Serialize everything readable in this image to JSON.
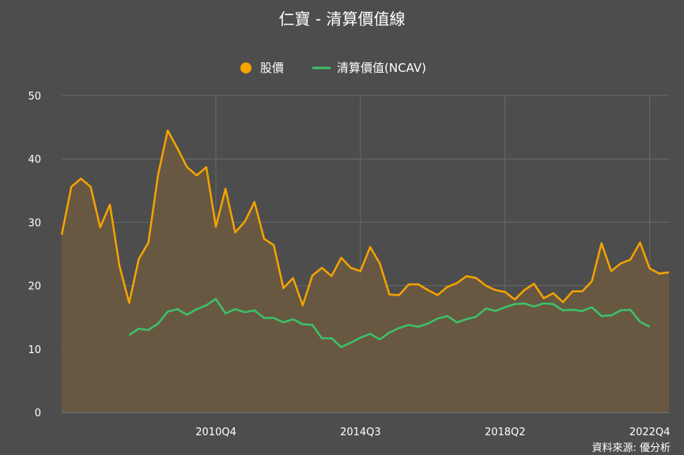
{
  "chart_data": {
    "type": "line",
    "title": "仁寶 - 清算價值線",
    "source": "資料來源: 優分析",
    "xlabel": "",
    "ylabel": "",
    "ylim": [
      0,
      50
    ],
    "yticks": [
      0,
      10,
      20,
      30,
      40,
      50
    ],
    "x_tick_labels": [
      "2010Q4",
      "2014Q3",
      "2018Q2",
      "2022Q4"
    ],
    "grid": true,
    "legend_position": "top-center",
    "colors": {
      "background": "#4d4d4d",
      "price": "#f5a300",
      "ncav": "#3cc26a",
      "price_fill": "#6b5a40"
    },
    "series": [
      {
        "name": "股價",
        "values": [
          28,
          35.6,
          36.9,
          35.6,
          29.2,
          32.8,
          23.1,
          17.3,
          24.2,
          26.8,
          37.5,
          44.5,
          41.7,
          38.7,
          37.4,
          38.7,
          29.3,
          35.3,
          28.4,
          30.1,
          33.2,
          27.4,
          26.4,
          19.6,
          21.2,
          16.9,
          21.6,
          22.8,
          21.5,
          24.4,
          22.8,
          22.3,
          26.1,
          23.5,
          18.6,
          18.5,
          20.2,
          20.2,
          19.3,
          18.5,
          19.8,
          20.4,
          21.5,
          21.2,
          20,
          19.3,
          19,
          17.8,
          19.3,
          20.3,
          18,
          18.8,
          17.4,
          19.1,
          19.1,
          20.7,
          26.7,
          22.3,
          23.5,
          24.1,
          26.8,
          22.7,
          21.9,
          22.1
        ]
      },
      {
        "name": "清算價值(NCAV)",
        "values": [
          null,
          null,
          null,
          null,
          null,
          null,
          null,
          12.2,
          13.2,
          13,
          14,
          15.9,
          16.3,
          15.4,
          16.3,
          16.9,
          17.9,
          15.6,
          16.3,
          15.8,
          16.1,
          14.9,
          14.9,
          14.2,
          14.7,
          13.9,
          13.8,
          11.7,
          11.7,
          10.3,
          11,
          11.8,
          12.4,
          11.5,
          12.6,
          13.3,
          13.8,
          13.5,
          14,
          14.8,
          15.2,
          14.2,
          14.7,
          15.1,
          16.4,
          16,
          16.6,
          17.1,
          17.2,
          16.7,
          17.2,
          17.1,
          16.1,
          16.2,
          16,
          16.6,
          15.2,
          15.3,
          16.1,
          16.2,
          14.3,
          13.5,
          null,
          null
        ]
      }
    ]
  }
}
